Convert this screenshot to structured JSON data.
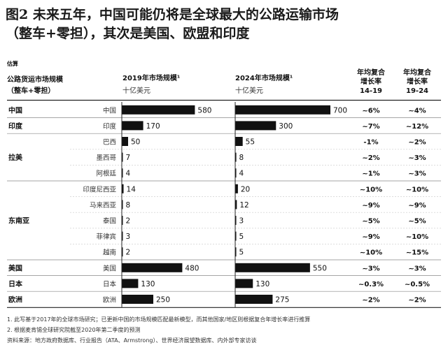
{
  "title_line1": "图2 未来五年，中国可能仍将是全球最大的公路运输市场",
  "title_line2": "（整车+零担），其次是美国、欧盟和印度",
  "estimate_label": "估算",
  "header": {
    "market_label_line1": "公路货运市场规模",
    "market_label_line2": "（整车+零担）",
    "col2019_title": "2019年市场规模¹",
    "col2019_unit": "十亿美元",
    "col2024_title": "2024年市场规模¹",
    "col2024_unit": "十亿美元",
    "cagr1_line1": "年均复合",
    "cagr1_line2": "增长率",
    "cagr1_line3": "14-19",
    "cagr2_line1": "年均复合",
    "cagr2_line2": "增长率",
    "cagr2_line3": "19-24"
  },
  "chart_data": {
    "type": "bar",
    "groups": [
      {
        "name": "中国",
        "rows": [
          0
        ]
      },
      {
        "name": "印度",
        "rows": [
          1
        ]
      },
      {
        "name": "拉美",
        "rows": [
          2,
          3,
          4
        ]
      },
      {
        "name": "东南亚",
        "rows": [
          5,
          6,
          7,
          8,
          9
        ]
      },
      {
        "name": "美国",
        "rows": [
          10
        ]
      },
      {
        "name": "日本",
        "rows": [
          11
        ]
      },
      {
        "name": "欧洲",
        "rows": [
          12
        ]
      }
    ],
    "categories": [
      "中国",
      "印度",
      "巴西",
      "墨西哥",
      "阿根廷",
      "印度尼西亚",
      "马来西亚",
      "泰国",
      "菲律宾",
      "越南",
      "美国",
      "日本",
      "欧洲"
    ],
    "series": [
      {
        "name": "2019年市场规模¹",
        "values": [
          580,
          170,
          50,
          7,
          4,
          14,
          8,
          2,
          3,
          2,
          480,
          130,
          250
        ]
      },
      {
        "name": "2024年市场规模¹",
        "values": [
          700,
          300,
          55,
          8,
          4,
          20,
          12,
          3,
          5,
          5,
          550,
          130,
          275
        ]
      }
    ],
    "cagr_14_19": [
      "~6%",
      "~7%",
      "-1%",
      "~2%",
      "~1%",
      "~10%",
      "~9%",
      "~5%",
      "~9%",
      "~10%",
      "~3%",
      "~0.3%",
      "~2%"
    ],
    "cagr_19_24": [
      "~4%",
      "~12%",
      "~2%",
      "~3%",
      "~3%",
      "~10%",
      "~9%",
      "~5%",
      "~10%",
      "~15%",
      "~3%",
      "~0.5%",
      "~2%"
    ],
    "xlim": [
      0,
      700
    ],
    "bar_color": "#111111"
  },
  "footnotes": [
    "1. 此写基于2017年的全球市场研究；已更新中国的市场规模匹配最新模型，而其他国家/地区则根据复合年增长率进行推算",
    "2. 根据麦肯锡全球研究院截至2020年第二季度的预测",
    "资料来源：地方政府数据库、行业报告（ATA、Armstrong）、世界经济展望数据库、内外部专家访谈"
  ]
}
